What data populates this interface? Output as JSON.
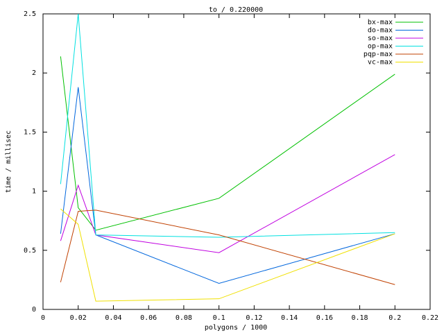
{
  "chart_data": {
    "type": "line",
    "title": "to / 0.220000",
    "x_label": "polygons / 1000",
    "y_label": "time / millisec",
    "x": [
      0.01,
      0.02,
      0.03,
      0.1,
      0.2
    ],
    "series": [
      {
        "name": "bx-max",
        "color": "#00c000",
        "values": [
          2.14,
          0.86,
          0.67,
          0.94,
          1.99
        ]
      },
      {
        "name": "do-max",
        "color": "#0066dd",
        "values": [
          0.64,
          1.88,
          0.63,
          0.22,
          0.64
        ]
      },
      {
        "name": "so-max",
        "color": "#c000e0",
        "values": [
          0.58,
          1.05,
          0.63,
          0.48,
          1.31
        ]
      },
      {
        "name": "op-max",
        "color": "#00e0e0",
        "values": [
          1.06,
          2.5,
          0.63,
          0.61,
          0.65
        ]
      },
      {
        "name": "pqp-max",
        "color": "#c04000",
        "values": [
          0.23,
          0.83,
          0.84,
          0.63,
          0.21
        ]
      },
      {
        "name": "vc-max",
        "color": "#f0e000",
        "values": [
          0.85,
          0.72,
          0.07,
          0.09,
          0.64
        ]
      }
    ],
    "xlim": [
      0,
      0.22
    ],
    "xticks": [
      0,
      0.02,
      0.04,
      0.06,
      0.08,
      0.1,
      0.12,
      0.14,
      0.16,
      0.18,
      0.2,
      0.22
    ],
    "ylim": [
      0,
      2.5
    ],
    "yticks": [
      0,
      0.5,
      1,
      1.5,
      2,
      2.5
    ],
    "legend": "top-right",
    "grid": false
  }
}
